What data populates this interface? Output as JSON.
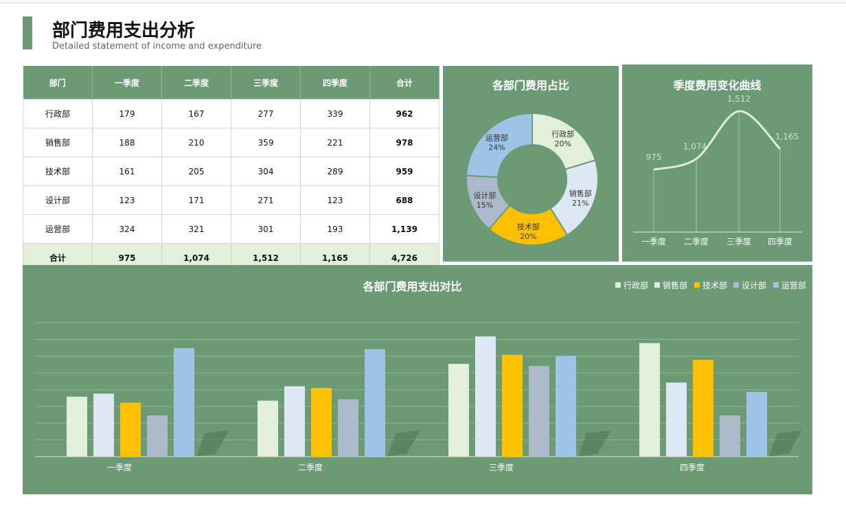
{
  "header": {
    "title": "部门费用支出分析",
    "subtitle": "Detailed statement of income and expenditure"
  },
  "table": {
    "headers": [
      "部门",
      "一季度",
      "二季度",
      "三季度",
      "四季度",
      "合计"
    ],
    "rows": [
      [
        "行政部",
        "179",
        "167",
        "277",
        "339",
        "962"
      ],
      [
        "销售部",
        "188",
        "210",
        "359",
        "221",
        "978"
      ],
      [
        "技术部",
        "161",
        "205",
        "304",
        "289",
        "959"
      ],
      [
        "设计部",
        "123",
        "171",
        "271",
        "123",
        "688"
      ],
      [
        "运营部",
        "324",
        "321",
        "301",
        "193",
        "1,139"
      ]
    ],
    "total": [
      "合计",
      "975",
      "1,074",
      "1,512",
      "1,165",
      "4,726"
    ]
  },
  "colors": {
    "panel": "#6b9a74",
    "行政部": "#e2efda",
    "销售部": "#dde8f4",
    "技术部": "#ffc000",
    "设计部": "#acb9ca",
    "运营部": "#9dc3e6"
  },
  "chart_data": [
    {
      "type": "pie",
      "title": "各部门费用占比",
      "labels": [
        "行政部",
        "销售部",
        "技术部",
        "设计部",
        "运营部"
      ],
      "values": [
        962,
        978,
        959,
        688,
        1139
      ],
      "percent_labels": [
        "20%",
        "21%",
        "20%",
        "15%",
        "24%"
      ]
    },
    {
      "type": "line",
      "title": "季度费用变化曲线",
      "categories": [
        "一季度",
        "二季度",
        "三季度",
        "四季度"
      ],
      "values": [
        975,
        1074,
        1512,
        1165
      ],
      "value_labels": [
        "975",
        "1,074",
        "1,512",
        "1,165"
      ]
    },
    {
      "type": "bar",
      "title": "各部门费用支出对比",
      "categories": [
        "一季度",
        "二季度",
        "三季度",
        "四季度"
      ],
      "series": [
        {
          "name": "行政部",
          "values": [
            179,
            167,
            277,
            339
          ]
        },
        {
          "name": "销售部",
          "values": [
            188,
            210,
            359,
            221
          ]
        },
        {
          "name": "技术部",
          "values": [
            161,
            205,
            304,
            289
          ]
        },
        {
          "name": "设计部",
          "values": [
            123,
            171,
            271,
            123
          ]
        },
        {
          "name": "运营部",
          "values": [
            324,
            321,
            301,
            193
          ]
        }
      ],
      "ylim": [
        0,
        400
      ],
      "grid": true,
      "legend": "top-right"
    }
  ]
}
